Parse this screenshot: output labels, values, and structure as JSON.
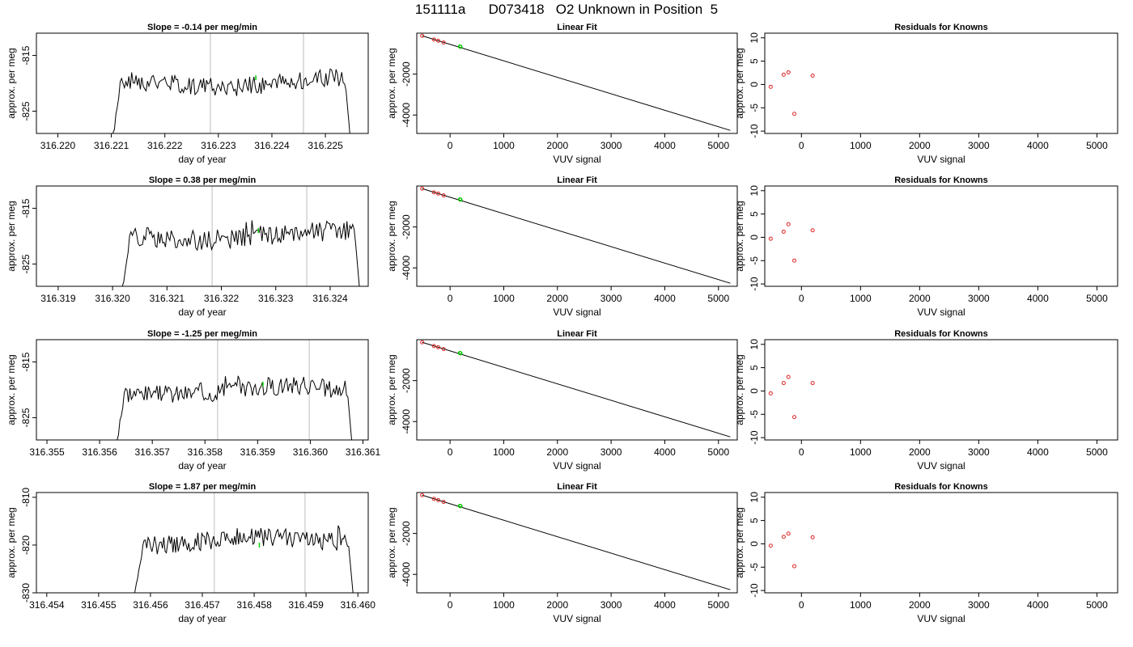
{
  "title": "151111a      D073418   O2 Unknown in Position  5",
  "colors": {
    "trace": "#000000",
    "marker": "#00cc00",
    "knowns": "#dd2222",
    "refline": "#c8c8c8"
  },
  "chart_data": [
    {
      "type": "line",
      "title": "Slope =  -0.14  per meg/min",
      "xlabel": "day of year",
      "ylabel": "approx. per meg",
      "xlim": [
        316.2196,
        316.2258
      ],
      "ylim": [
        -829,
        -811
      ],
      "xticks": [
        316.22,
        316.221,
        316.222,
        316.223,
        316.224,
        316.225
      ],
      "xtick_labels": [
        "316.220",
        "316.221",
        "316.222",
        "316.223",
        "316.224",
        "316.225"
      ],
      "yticks": [
        -815,
        -825
      ],
      "ytick_labels": [
        "-815",
        "-825"
      ],
      "vlines": [
        316.22285,
        316.22459
      ],
      "signal": {
        "start": 316.22095,
        "end": 316.22552,
        "base": -820,
        "amp": 1.7,
        "seed": 1
      },
      "marker": {
        "x": 316.2237,
        "y": -819
      }
    },
    {
      "type": "scatter",
      "title": "Linear Fit",
      "xlabel": "VUV signal",
      "ylabel": "approx. per meg",
      "xlim": [
        -620,
        5350
      ],
      "ylim": [
        -4900,
        0
      ],
      "xticks": [
        0,
        1000,
        2000,
        3000,
        4000,
        5000
      ],
      "xtick_labels": [
        "0",
        "1000",
        "2000",
        "3000",
        "4000",
        "5000"
      ],
      "yticks": [
        -2000,
        -4000
      ],
      "ytick_labels": [
        "-2000",
        "-4000"
      ],
      "fit_line": {
        "x": [
          -520,
          5220
        ],
        "y": [
          -130,
          -4750
        ]
      },
      "knowns": {
        "x": [
          -520,
          -300,
          -220,
          -120,
          190
        ],
        "y": [
          -130,
          -310,
          -370,
          -460,
          -660
        ]
      },
      "unknown": {
        "x": [
          185,
          195
        ],
        "y": [
          -650,
          -665
        ]
      }
    },
    {
      "type": "scatter",
      "title": "Residuals for Knowns",
      "xlabel": "VUV signal",
      "ylabel": "approx. per meg",
      "xlim": [
        -620,
        5350
      ],
      "ylim": [
        -10.5,
        11
      ],
      "xticks": [
        0,
        1000,
        2000,
        3000,
        4000,
        5000
      ],
      "xtick_labels": [
        "0",
        "1000",
        "2000",
        "3000",
        "4000",
        "5000"
      ],
      "yticks": [
        10,
        5,
        0,
        -5,
        -10
      ],
      "ytick_labels": [
        "10",
        "5",
        "0",
        "-5",
        "-10"
      ],
      "points": {
        "x": [
          -520,
          -300,
          -220,
          -120,
          190
        ],
        "y": [
          -0.5,
          2.1,
          2.6,
          -6.3,
          1.9
        ]
      }
    },
    {
      "type": "line",
      "title": "Slope =  0.38  per meg/min",
      "xlabel": "day of year",
      "ylabel": "approx. per meg",
      "xlim": [
        316.3186,
        316.3247
      ],
      "ylim": [
        -829,
        -811
      ],
      "xticks": [
        316.319,
        316.32,
        316.321,
        316.322,
        316.323,
        316.324
      ],
      "xtick_labels": [
        "316.319",
        "316.320",
        "316.321",
        "316.322",
        "316.323",
        "316.324"
      ],
      "yticks": [
        -815,
        -825
      ],
      "ytick_labels": [
        "-815",
        "-825"
      ],
      "vlines": [
        316.32183,
        316.32357
      ],
      "signal": {
        "start": 316.3201,
        "end": 316.3246,
        "base": -820,
        "amp": 1.8,
        "seed": 2
      },
      "marker": {
        "x": 316.32268,
        "y": -819
      }
    },
    {
      "type": "scatter",
      "title": "Linear Fit",
      "xlabel": "VUV signal",
      "ylabel": "approx. per meg",
      "xlim": [
        -620,
        5350
      ],
      "ylim": [
        -4900,
        0
      ],
      "xticks": [
        0,
        1000,
        2000,
        3000,
        4000,
        5000
      ],
      "xtick_labels": [
        "0",
        "1000",
        "2000",
        "3000",
        "4000",
        "5000"
      ],
      "yticks": [
        -2000,
        -4000
      ],
      "ytick_labels": [
        "-2000",
        "-4000"
      ],
      "fit_line": {
        "x": [
          -520,
          5220
        ],
        "y": [
          -130,
          -4750
        ]
      },
      "knowns": {
        "x": [
          -520,
          -300,
          -220,
          -120,
          190
        ],
        "y": [
          -130,
          -310,
          -370,
          -460,
          -660
        ]
      },
      "unknown": {
        "x": [
          185,
          195
        ],
        "y": [
          -650,
          -665
        ]
      }
    },
    {
      "type": "scatter",
      "title": "Residuals for Knowns",
      "xlabel": "VUV signal",
      "ylabel": "approx. per meg",
      "xlim": [
        -620,
        5350
      ],
      "ylim": [
        -10.5,
        11
      ],
      "xticks": [
        0,
        1000,
        2000,
        3000,
        4000,
        5000
      ],
      "xtick_labels": [
        "0",
        "1000",
        "2000",
        "3000",
        "4000",
        "5000"
      ],
      "yticks": [
        10,
        5,
        0,
        -5,
        -10
      ],
      "ytick_labels": [
        "10",
        "5",
        "0",
        "-5",
        "-10"
      ],
      "points": {
        "x": [
          -520,
          -300,
          -220,
          -120,
          190
        ],
        "y": [
          -0.3,
          1.2,
          2.8,
          -5.0,
          1.5
        ]
      }
    },
    {
      "type": "line",
      "title": "Slope =  -1.25  per meg/min",
      "xlabel": "day of year",
      "ylabel": "approx. per meg",
      "xlim": [
        316.3548,
        316.3611
      ],
      "ylim": [
        -829,
        -811
      ],
      "xticks": [
        316.355,
        316.356,
        316.357,
        316.358,
        316.359,
        316.36,
        316.361
      ],
      "xtick_labels": [
        "316.355",
        "316.356",
        "316.357",
        "316.358",
        "316.359",
        "316.360",
        "316.361"
      ],
      "yticks": [
        -815,
        -825
      ],
      "ytick_labels": [
        "-815",
        "-825"
      ],
      "vlines": [
        316.35824,
        316.35998
      ],
      "signal": {
        "start": 316.35625,
        "end": 316.36085,
        "base": -820,
        "amp": 1.7,
        "seed": 3
      },
      "marker": {
        "x": 316.3591,
        "y": -819
      }
    },
    {
      "type": "scatter",
      "title": "Linear Fit",
      "xlabel": "VUV signal",
      "ylabel": "approx. per meg",
      "xlim": [
        -620,
        5350
      ],
      "ylim": [
        -4900,
        0
      ],
      "xticks": [
        0,
        1000,
        2000,
        3000,
        4000,
        5000
      ],
      "xtick_labels": [
        "0",
        "1000",
        "2000",
        "3000",
        "4000",
        "5000"
      ],
      "yticks": [
        -2000,
        -4000
      ],
      "ytick_labels": [
        "-2000",
        "-4000"
      ],
      "fit_line": {
        "x": [
          -520,
          5220
        ],
        "y": [
          -130,
          -4750
        ]
      },
      "knowns": {
        "x": [
          -520,
          -300,
          -220,
          -120,
          190
        ],
        "y": [
          -130,
          -310,
          -370,
          -460,
          -660
        ]
      },
      "unknown": {
        "x": [
          185,
          195
        ],
        "y": [
          -650,
          -665
        ]
      }
    },
    {
      "type": "scatter",
      "title": "Residuals for Knowns",
      "xlabel": "VUV signal",
      "ylabel": "approx. per meg",
      "xlim": [
        -620,
        5350
      ],
      "ylim": [
        -10.5,
        11
      ],
      "xticks": [
        0,
        1000,
        2000,
        3000,
        4000,
        5000
      ],
      "xtick_labels": [
        "0",
        "1000",
        "2000",
        "3000",
        "4000",
        "5000"
      ],
      "yticks": [
        10,
        5,
        0,
        -5,
        -10
      ],
      "ytick_labels": [
        "10",
        "5",
        "0",
        "-5",
        "-10"
      ],
      "points": {
        "x": [
          -520,
          -300,
          -220,
          -120,
          190
        ],
        "y": [
          -0.5,
          1.7,
          3.0,
          -5.6,
          1.7
        ]
      }
    },
    {
      "type": "line",
      "title": "Slope =  1.87  per meg/min",
      "xlabel": "day of year",
      "ylabel": "approx. per meg",
      "xlim": [
        316.4538,
        316.4602
      ],
      "ylim": [
        -830,
        -809
      ],
      "xticks": [
        316.454,
        316.455,
        316.456,
        316.457,
        316.458,
        316.459,
        316.46
      ],
      "xtick_labels": [
        "316.454",
        "316.455",
        "316.456",
        "316.457",
        "316.458",
        "316.459",
        "316.460"
      ],
      "yticks": [
        -810,
        -820,
        -830
      ],
      "ytick_labels": [
        "-810",
        "-820",
        "-830"
      ],
      "vlines": [
        316.45723,
        316.45898
      ],
      "signal": {
        "start": 316.45565,
        "end": 316.45995,
        "base": -819,
        "amp": 2.0,
        "seed": 4
      },
      "marker": {
        "x": 316.4581,
        "y": -820
      }
    },
    {
      "type": "scatter",
      "title": "Linear Fit",
      "xlabel": "VUV signal",
      "ylabel": "approx. per meg",
      "xlim": [
        -620,
        5350
      ],
      "ylim": [
        -4900,
        0
      ],
      "xticks": [
        0,
        1000,
        2000,
        3000,
        4000,
        5000
      ],
      "xtick_labels": [
        "0",
        "1000",
        "2000",
        "3000",
        "4000",
        "5000"
      ],
      "yticks": [
        -2000,
        -4000
      ],
      "ytick_labels": [
        "-2000",
        "-4000"
      ],
      "fit_line": {
        "x": [
          -520,
          5220
        ],
        "y": [
          -130,
          -4750
        ]
      },
      "knowns": {
        "x": [
          -520,
          -300,
          -220,
          -120,
          190
        ],
        "y": [
          -130,
          -310,
          -370,
          -460,
          -660
        ]
      },
      "unknown": {
        "x": [
          185,
          195
        ],
        "y": [
          -650,
          -665
        ]
      }
    },
    {
      "type": "scatter",
      "title": "Residuals for Knowns",
      "xlabel": "VUV signal",
      "ylabel": "approx. per meg",
      "xlim": [
        -620,
        5350
      ],
      "ylim": [
        -10.5,
        11
      ],
      "xticks": [
        0,
        1000,
        2000,
        3000,
        4000,
        5000
      ],
      "xtick_labels": [
        "0",
        "1000",
        "2000",
        "3000",
        "4000",
        "5000"
      ],
      "yticks": [
        10,
        5,
        0,
        -5,
        -10
      ],
      "ytick_labels": [
        "10",
        "5",
        "0",
        "-5",
        "-10"
      ],
      "points": {
        "x": [
          -520,
          -300,
          -220,
          -120,
          190
        ],
        "y": [
          -0.4,
          1.5,
          2.2,
          -4.8,
          1.4
        ]
      }
    }
  ]
}
